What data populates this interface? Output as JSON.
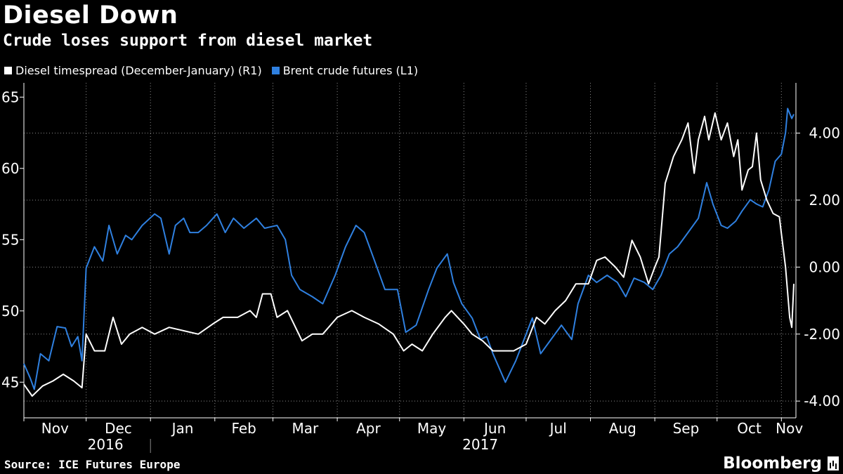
{
  "header": {
    "title": "Diesel Down",
    "subtitle": "Crude loses support from diesel market"
  },
  "footer": {
    "source": "Source: ICE Futures Europe",
    "brand": "Bloomberg"
  },
  "colors": {
    "background": "#000000",
    "diesel": "#ffffff",
    "brent": "#2f80e0",
    "grid": "#8a8a8a"
  },
  "chart_data": {
    "type": "line",
    "title": "Diesel Down",
    "subtitle": "Crude loses support from diesel market",
    "legend_position": "top-left",
    "x_range": [
      "2016-11-01",
      "2017-11-08"
    ],
    "x_tick_labels": [
      "Nov",
      "Dec",
      "Jan",
      "Feb",
      "Mar",
      "Apr",
      "May",
      "Jun",
      "Jul",
      "Aug",
      "Sep",
      "Oct",
      "Nov"
    ],
    "year_labels": [
      "2016",
      "2017"
    ],
    "left_axis": {
      "label": "L1",
      "ylim": [
        42.5,
        66
      ],
      "ticks": [
        45,
        50,
        55,
        60,
        65
      ],
      "tick_labels": [
        "45",
        "50",
        "55",
        "60",
        "65"
      ]
    },
    "right_axis": {
      "label": "R1",
      "ylim": [
        -4.5,
        5.5
      ],
      "ticks": [
        -4,
        -2,
        0,
        2,
        4
      ],
      "tick_labels": [
        "-4.00",
        "-2.00",
        "0.00",
        "2.00",
        "4.00"
      ]
    },
    "grid": true,
    "series": [
      {
        "name": "Diesel timespread (December-January) (R1)",
        "axis": "right",
        "color": "#ffffff",
        "points": [
          [
            "2016-11-01",
            -3.5
          ],
          [
            "2016-11-05",
            -3.85
          ],
          [
            "2016-11-10",
            -3.55
          ],
          [
            "2016-11-15",
            -3.4
          ],
          [
            "2016-11-20",
            -3.2
          ],
          [
            "2016-11-25",
            -3.4
          ],
          [
            "2016-11-29",
            -3.6
          ],
          [
            "2016-12-01",
            -2.0
          ],
          [
            "2016-12-05",
            -2.5
          ],
          [
            "2016-12-10",
            -2.5
          ],
          [
            "2016-12-14",
            -1.5
          ],
          [
            "2016-12-18",
            -2.3
          ],
          [
            "2016-12-22",
            -2.0
          ],
          [
            "2016-12-28",
            -1.8
          ],
          [
            "2017-01-03",
            -2.0
          ],
          [
            "2017-01-10",
            -1.8
          ],
          [
            "2017-01-17",
            -1.9
          ],
          [
            "2017-01-24",
            -2.0
          ],
          [
            "2017-01-31",
            -1.7
          ],
          [
            "2017-02-05",
            -1.5
          ],
          [
            "2017-02-12",
            -1.5
          ],
          [
            "2017-02-18",
            -1.3
          ],
          [
            "2017-02-21",
            -1.5
          ],
          [
            "2017-02-24",
            -0.8
          ],
          [
            "2017-02-28",
            -0.8
          ],
          [
            "2017-03-03",
            -1.5
          ],
          [
            "2017-03-08",
            -1.3
          ],
          [
            "2017-03-15",
            -2.2
          ],
          [
            "2017-03-20",
            -2.0
          ],
          [
            "2017-03-25",
            -2.0
          ],
          [
            "2017-04-01",
            -1.5
          ],
          [
            "2017-04-08",
            -1.3
          ],
          [
            "2017-04-14",
            -1.5
          ],
          [
            "2017-04-21",
            -1.7
          ],
          [
            "2017-04-28",
            -2.0
          ],
          [
            "2017-05-03",
            -2.5
          ],
          [
            "2017-05-07",
            -2.3
          ],
          [
            "2017-05-12",
            -2.5
          ],
          [
            "2017-05-17",
            -2.0
          ],
          [
            "2017-05-23",
            -1.5
          ],
          [
            "2017-05-26",
            -1.3
          ],
          [
            "2017-06-01",
            -1.7
          ],
          [
            "2017-06-05",
            -2.0
          ],
          [
            "2017-06-10",
            -2.2
          ],
          [
            "2017-06-15",
            -2.5
          ],
          [
            "2017-06-20",
            -2.5
          ],
          [
            "2017-06-25",
            -2.5
          ],
          [
            "2017-07-01",
            -2.3
          ],
          [
            "2017-07-06",
            -1.5
          ],
          [
            "2017-07-10",
            -1.7
          ],
          [
            "2017-07-15",
            -1.3
          ],
          [
            "2017-07-20",
            -1.0
          ],
          [
            "2017-07-25",
            -0.5
          ],
          [
            "2017-07-31",
            -0.5
          ],
          [
            "2017-08-04",
            0.2
          ],
          [
            "2017-08-08",
            0.3
          ],
          [
            "2017-08-13",
            0.0
          ],
          [
            "2017-08-17",
            -0.3
          ],
          [
            "2017-08-21",
            0.8
          ],
          [
            "2017-08-25",
            0.3
          ],
          [
            "2017-08-29",
            -0.5
          ],
          [
            "2017-09-01",
            0.0
          ],
          [
            "2017-09-03",
            0.3
          ],
          [
            "2017-09-06",
            2.5
          ],
          [
            "2017-09-10",
            3.3
          ],
          [
            "2017-09-14",
            3.8
          ],
          [
            "2017-09-17",
            4.3
          ],
          [
            "2017-09-20",
            2.8
          ],
          [
            "2017-09-22",
            3.8
          ],
          [
            "2017-09-25",
            4.5
          ],
          [
            "2017-09-27",
            3.8
          ],
          [
            "2017-09-30",
            4.6
          ],
          [
            "2017-10-03",
            3.8
          ],
          [
            "2017-10-06",
            4.3
          ],
          [
            "2017-10-09",
            3.3
          ],
          [
            "2017-10-11",
            3.8
          ],
          [
            "2017-10-13",
            2.3
          ],
          [
            "2017-10-16",
            2.9
          ],
          [
            "2017-10-18",
            3.0
          ],
          [
            "2017-10-20",
            4.0
          ],
          [
            "2017-10-22",
            2.6
          ],
          [
            "2017-10-25",
            2.0
          ],
          [
            "2017-10-28",
            1.6
          ],
          [
            "2017-10-31",
            1.5
          ],
          [
            "2017-11-01",
            1.0
          ],
          [
            "2017-11-03",
            0.0
          ],
          [
            "2017-11-05",
            -1.5
          ],
          [
            "2017-11-06",
            -1.8
          ],
          [
            "2017-11-07",
            -0.5
          ]
        ]
      },
      {
        "name": "Brent crude futures (L1)",
        "axis": "left",
        "color": "#2f80e0",
        "points": [
          [
            "2016-11-01",
            46.3
          ],
          [
            "2016-11-04",
            45.3
          ],
          [
            "2016-11-06",
            44.5
          ],
          [
            "2016-11-09",
            47.0
          ],
          [
            "2016-11-13",
            46.5
          ],
          [
            "2016-11-17",
            48.9
          ],
          [
            "2016-11-21",
            48.8
          ],
          [
            "2016-11-24",
            47.5
          ],
          [
            "2016-11-27",
            48.2
          ],
          [
            "2016-11-29",
            46.5
          ],
          [
            "2016-12-01",
            53.0
          ],
          [
            "2016-12-05",
            54.5
          ],
          [
            "2016-12-09",
            53.5
          ],
          [
            "2016-12-12",
            56.0
          ],
          [
            "2016-12-16",
            54.0
          ],
          [
            "2016-12-20",
            55.3
          ],
          [
            "2016-12-23",
            55.0
          ],
          [
            "2016-12-28",
            56.0
          ],
          [
            "2017-01-03",
            56.8
          ],
          [
            "2017-01-06",
            56.5
          ],
          [
            "2017-01-10",
            54.0
          ],
          [
            "2017-01-13",
            56.0
          ],
          [
            "2017-01-17",
            56.5
          ],
          [
            "2017-01-20",
            55.5
          ],
          [
            "2017-01-24",
            55.5
          ],
          [
            "2017-01-28",
            56.0
          ],
          [
            "2017-02-02",
            56.8
          ],
          [
            "2017-02-06",
            55.5
          ],
          [
            "2017-02-10",
            56.5
          ],
          [
            "2017-02-15",
            55.8
          ],
          [
            "2017-02-21",
            56.5
          ],
          [
            "2017-02-25",
            55.8
          ],
          [
            "2017-03-03",
            56.0
          ],
          [
            "2017-03-07",
            55.0
          ],
          [
            "2017-03-10",
            52.5
          ],
          [
            "2017-03-14",
            51.5
          ],
          [
            "2017-03-20",
            51.0
          ],
          [
            "2017-03-25",
            50.5
          ],
          [
            "2017-03-31",
            52.5
          ],
          [
            "2017-04-05",
            54.5
          ],
          [
            "2017-04-10",
            56.0
          ],
          [
            "2017-04-14",
            55.5
          ],
          [
            "2017-04-19",
            53.5
          ],
          [
            "2017-04-24",
            51.5
          ],
          [
            "2017-04-30",
            51.5
          ],
          [
            "2017-05-04",
            48.5
          ],
          [
            "2017-05-09",
            49.0
          ],
          [
            "2017-05-15",
            51.5
          ],
          [
            "2017-05-19",
            53.0
          ],
          [
            "2017-05-24",
            54.0
          ],
          [
            "2017-05-27",
            52.0
          ],
          [
            "2017-05-31",
            50.5
          ],
          [
            "2017-06-05",
            49.5
          ],
          [
            "2017-06-09",
            48.0
          ],
          [
            "2017-06-12",
            48.2
          ],
          [
            "2017-06-15",
            47.0
          ],
          [
            "2017-06-21",
            45.0
          ],
          [
            "2017-06-26",
            46.5
          ],
          [
            "2017-06-30",
            48.0
          ],
          [
            "2017-07-04",
            49.5
          ],
          [
            "2017-07-08",
            47.0
          ],
          [
            "2017-07-13",
            48.0
          ],
          [
            "2017-07-18",
            49.0
          ],
          [
            "2017-07-23",
            48.0
          ],
          [
            "2017-07-26",
            50.5
          ],
          [
            "2017-07-31",
            52.5
          ],
          [
            "2017-08-04",
            52.0
          ],
          [
            "2017-08-09",
            52.5
          ],
          [
            "2017-08-14",
            52.0
          ],
          [
            "2017-08-18",
            51.0
          ],
          [
            "2017-08-22",
            52.3
          ],
          [
            "2017-08-27",
            52.0
          ],
          [
            "2017-08-31",
            51.5
          ],
          [
            "2017-09-04",
            52.5
          ],
          [
            "2017-09-08",
            54.0
          ],
          [
            "2017-09-12",
            54.5
          ],
          [
            "2017-09-17",
            55.5
          ],
          [
            "2017-09-22",
            56.5
          ],
          [
            "2017-09-26",
            59.0
          ],
          [
            "2017-09-29",
            57.5
          ],
          [
            "2017-10-03",
            56.0
          ],
          [
            "2017-10-06",
            55.8
          ],
          [
            "2017-10-10",
            56.3
          ],
          [
            "2017-10-13",
            57.0
          ],
          [
            "2017-10-17",
            57.8
          ],
          [
            "2017-10-20",
            57.5
          ],
          [
            "2017-10-23",
            57.3
          ],
          [
            "2017-10-26",
            58.5
          ],
          [
            "2017-10-29",
            60.5
          ],
          [
            "2017-11-01",
            61.0
          ],
          [
            "2017-11-03",
            62.5
          ],
          [
            "2017-11-04",
            64.2
          ],
          [
            "2017-11-06",
            63.5
          ],
          [
            "2017-11-07",
            63.8
          ]
        ]
      }
    ]
  }
}
